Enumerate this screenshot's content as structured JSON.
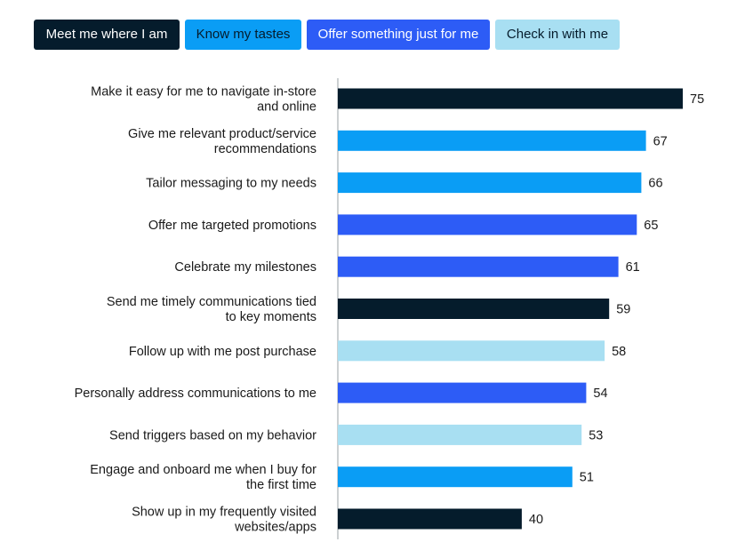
{
  "legend": [
    {
      "label": "Meet me where I am",
      "color": "#051c2c",
      "text_color": "#ffffff"
    },
    {
      "label": "Know my tastes",
      "color": "#0a9df5",
      "text_color": "#051c2c"
    },
    {
      "label": "Offer something just for me",
      "color": "#2d5cf6",
      "text_color": "#ffffff"
    },
    {
      "label": "Check in with me",
      "color": "#a8dff2",
      "text_color": "#051c2c"
    }
  ],
  "chart_data": {
    "type": "bar",
    "orientation": "horizontal",
    "title": "",
    "xlabel": "",
    "ylabel": "",
    "xlim": [
      0,
      75
    ],
    "grid": false,
    "categories": [
      [
        "Make it easy for me to navigate in-store",
        "and online"
      ],
      [
        "Give me relevant product/service",
        "recommendations"
      ],
      [
        "Tailor messaging to my needs"
      ],
      [
        "Offer me targeted promotions"
      ],
      [
        "Celebrate my milestones"
      ],
      [
        "Send me timely communications tied",
        "to key moments"
      ],
      [
        "Follow up with me post purchase"
      ],
      [
        "Personally address communications to me"
      ],
      [
        "Send triggers based on my behavior"
      ],
      [
        "Engage and onboard me when I buy for",
        "the first time"
      ],
      [
        "Show up in my frequently visited",
        "websites/apps"
      ]
    ],
    "values": [
      75,
      67,
      66,
      65,
      61,
      59,
      58,
      54,
      53,
      51,
      40
    ],
    "groups": [
      0,
      1,
      1,
      2,
      2,
      0,
      3,
      2,
      3,
      1,
      0
    ]
  }
}
